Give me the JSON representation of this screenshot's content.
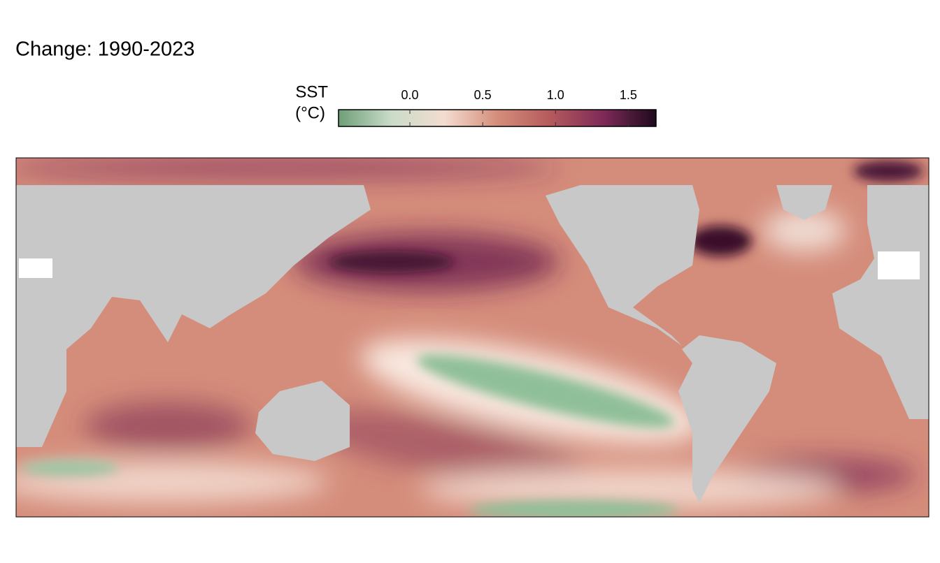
{
  "title": "Change:  1990-2023",
  "legend": {
    "title": [
      "SST",
      "(°C)"
    ],
    "lim": [
      -0.49,
      1.69
    ],
    "ticks": [
      {
        "value": 0,
        "label": "0.0"
      },
      {
        "value": 0.5,
        "label": "0.5"
      },
      {
        "value": 1,
        "label": "1.0"
      },
      {
        "value": 1.5,
        "label": "1.5"
      }
    ],
    "colors": [
      "#6f9e78",
      "#c9dcc8",
      "#f3dcd0",
      "#d48e7a",
      "#b55a5c",
      "#7e2a58",
      "#1e0a1c"
    ]
  },
  "land_color": "#c8c8c8"
}
